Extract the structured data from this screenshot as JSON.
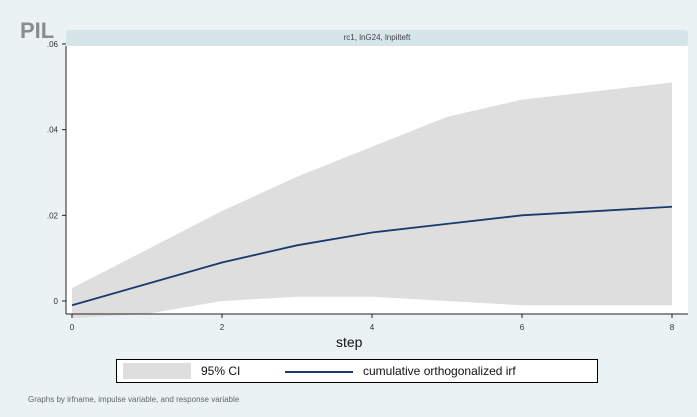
{
  "stamp": "PIL",
  "chart_data": {
    "type": "area",
    "title": "rc1, lnG24, lnpilteft",
    "xlabel": "step",
    "ylabel": "",
    "x": [
      0,
      1,
      2,
      3,
      4,
      5,
      6,
      7,
      8
    ],
    "xticks": [
      "0",
      "2",
      "4",
      "6",
      "8"
    ],
    "xtick_values": [
      0,
      2,
      4,
      6,
      8
    ],
    "yticks": [
      "0",
      ".02",
      ".04",
      ".06"
    ],
    "ytick_values": [
      0,
      0.02,
      0.04,
      0.06
    ],
    "xlim": [
      0,
      8
    ],
    "ylim": [
      0,
      0.06
    ],
    "series": [
      {
        "name": "95% CI",
        "kind": "band",
        "lower": [
          -0.004,
          -0.003,
          0.0,
          0.001,
          0.001,
          0.0,
          -0.001,
          -0.001,
          -0.001
        ],
        "upper": [
          0.003,
          0.012,
          0.021,
          0.029,
          0.036,
          0.043,
          0.047,
          0.049,
          0.051
        ]
      },
      {
        "name": "cumulative orthogonalized irf",
        "kind": "line",
        "values": [
          -0.001,
          0.004,
          0.009,
          0.013,
          0.016,
          0.018,
          0.02,
          0.021,
          0.022
        ]
      }
    ],
    "legend_position": "bottom",
    "grid": false,
    "colors": {
      "band": "#dedede",
      "line": "#1a3a6b",
      "plot_bg": "#ffffff",
      "page_bg": "#eaf2f3"
    }
  },
  "footnote": "Graphs by irfname, impulse variable, and response variable"
}
